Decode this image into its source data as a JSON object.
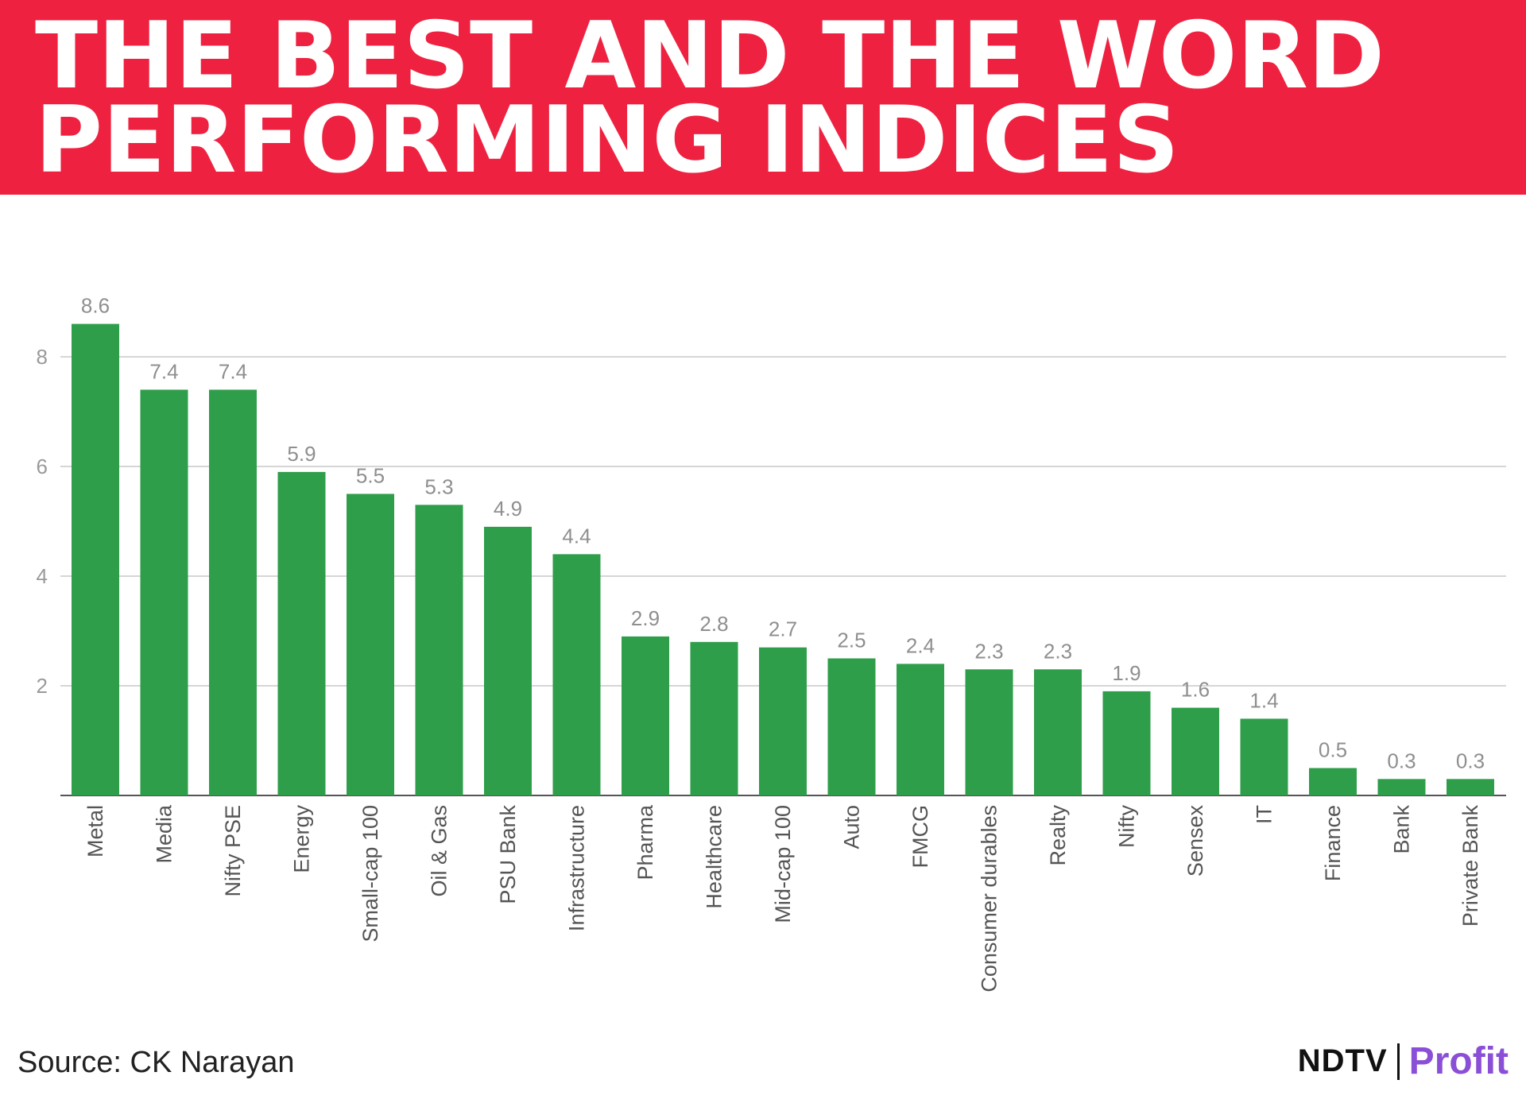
{
  "header": {
    "title_line1": "THE BEST AND THE WORD",
    "title_line2": "PERFORMING INDICES"
  },
  "footer": {
    "source": "Source: CK Narayan",
    "brand_ndtv": "NDTV",
    "brand_profit": "Profit"
  },
  "colors": {
    "header_bg": "#ee2240",
    "bar": "#2f9e4a",
    "grid": "#d6d6d6",
    "axis_text": "#9a9a9a",
    "value_text": "#8f8f8f",
    "brand_profit": "#8a4fd6"
  },
  "chart_data": {
    "type": "bar",
    "title": "THE BEST AND THE WORD PERFORMING INDICES",
    "xlabel": "",
    "ylabel": "",
    "ylim": [
      0,
      9
    ],
    "yticks": [
      2,
      4,
      6,
      8
    ],
    "grid": true,
    "categories": [
      "Metal",
      "Media",
      "Nifty PSE",
      "Energy",
      "Small-cap 100",
      "Oil & Gas",
      "PSU Bank",
      "Infrastructure",
      "Pharma",
      "Healthcare",
      "Mid-cap 100",
      "Auto",
      "FMCG",
      "Consumer durables",
      "Realty",
      "Nifty",
      "Sensex",
      "IT",
      "Finance",
      "Bank",
      "Private Bank"
    ],
    "values": [
      8.6,
      7.4,
      7.4,
      5.9,
      5.5,
      5.3,
      4.9,
      4.4,
      2.9,
      2.8,
      2.7,
      2.5,
      2.4,
      2.3,
      2.3,
      1.9,
      1.6,
      1.4,
      0.5,
      0.3,
      0.3
    ]
  }
}
